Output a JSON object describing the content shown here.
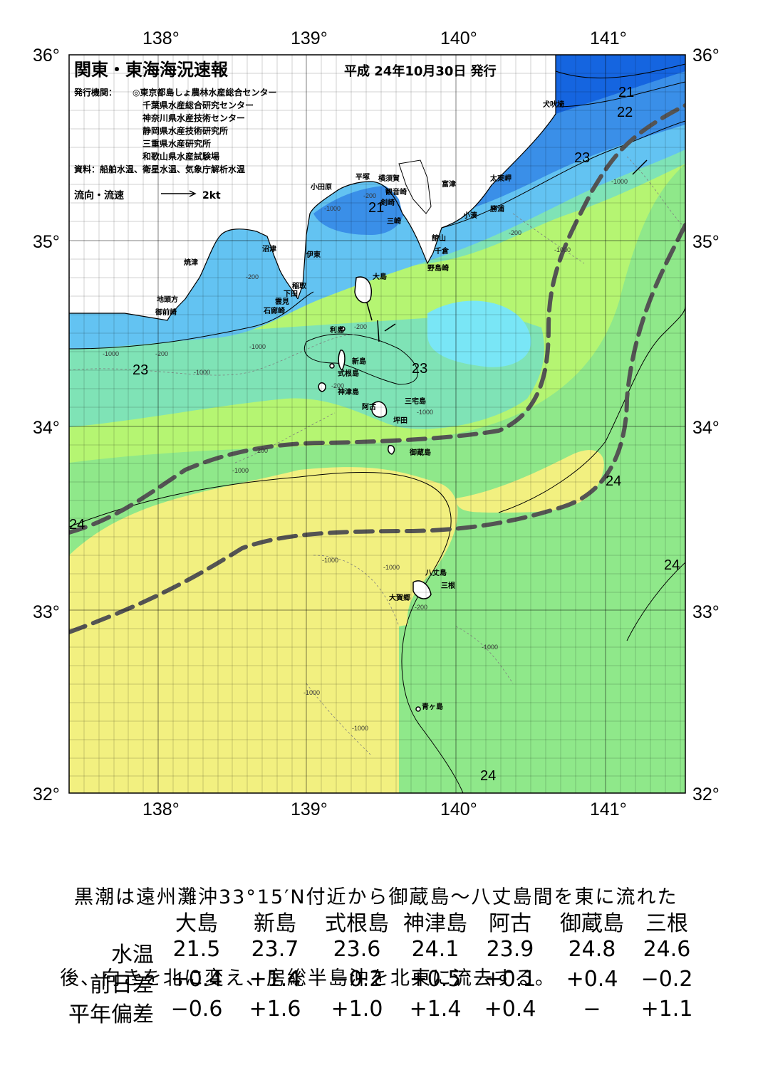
{
  "header": {
    "title": "関東・東海海況速報",
    "date": "平成 24年10月30日 発行",
    "issuer_label": "発行機関：",
    "issuers": [
      "◎東京都島しょ農林水産総合センター",
      "千葉県水産総合研究センター",
      "神奈川県水産技術センター",
      "静岡県水産技術研究所",
      "三重県水産研究所",
      "和歌山県水産試験場"
    ],
    "source": "資料：船舶水温、衛星水温、気象庁解析水温",
    "flow_label": "流向・流速",
    "flow_scale": "2kt"
  },
  "axes": {
    "lon_labels": [
      "138°",
      "139°",
      "140°",
      "141°"
    ],
    "lat_labels": [
      "36°",
      "35°",
      "34°",
      "33°",
      "32°"
    ]
  },
  "places": [
    {
      "name": "犬吠埼"
    },
    {
      "name": "太東岬"
    },
    {
      "name": "勝浦"
    },
    {
      "name": "小湊"
    },
    {
      "name": "富津"
    },
    {
      "name": "館山"
    },
    {
      "name": "千倉"
    },
    {
      "name": "野島崎"
    },
    {
      "name": "横須賀"
    },
    {
      "name": "観音崎"
    },
    {
      "name": "平塚"
    },
    {
      "name": "剣崎"
    },
    {
      "name": "三崎"
    },
    {
      "name": "小田原"
    },
    {
      "name": "沼津"
    },
    {
      "name": "伊東"
    },
    {
      "name": "焼津"
    },
    {
      "name": "稲取"
    },
    {
      "name": "下田"
    },
    {
      "name": "雲見"
    },
    {
      "name": "石廊崎"
    },
    {
      "name": "地頭方"
    },
    {
      "name": "御前崎"
    },
    {
      "name": "大島"
    },
    {
      "name": "利島"
    },
    {
      "name": "新島"
    },
    {
      "name": "式根島"
    },
    {
      "name": "神津島"
    },
    {
      "name": "阿古"
    },
    {
      "name": "三宅島"
    },
    {
      "name": "坪田"
    },
    {
      "name": "御蔵島"
    },
    {
      "name": "八丈島"
    },
    {
      "name": "三根"
    },
    {
      "name": "大賀郷"
    },
    {
      "name": "青ヶ島"
    }
  ],
  "isotherm_labels": [
    "21",
    "22",
    "23",
    "21",
    "23",
    "23",
    "24",
    "24",
    "24",
    "24"
  ],
  "depth_labels": [
    "-1000",
    "-200",
    "-200",
    "-200",
    "-1000",
    "-200",
    "-1000",
    "-200",
    "-1000",
    "-1000",
    "-200",
    "-200",
    "-1000",
    "-1000",
    "-1000",
    "-1000",
    "-1000",
    "-200",
    "-1000",
    "-1000",
    "-1000"
  ],
  "colors": {
    "deep_blue": "#1565e0",
    "blue": "#3a8fe8",
    "light_blue": "#63c3f2",
    "cyan": "#79e6f6",
    "teal_green": "#7fe3b6",
    "green": "#8fe88a",
    "lime": "#b5f572",
    "yellow": "#f2f080",
    "kuroshio_axis": "#545454"
  },
  "summary": {
    "line1": "黒潮は遠州灘沖33°15′N付近から御蔵島～八丈島間を東に流れた",
    "line2": "後、向きを北に変え、房総半島沖を北東に流去する。"
  },
  "table": {
    "columns": [
      "大島",
      "新島",
      "式根島",
      "神津島",
      "阿古",
      "御蔵島",
      "三根"
    ],
    "rows": [
      {
        "label": "水温",
        "values": [
          "21.5",
          "23.7",
          "23.6",
          "24.1",
          "23.9",
          "24.8",
          "24.6"
        ]
      },
      {
        "label": "前日差",
        "values": [
          "+0.4",
          "+1.4",
          "−0.2",
          "+0.5",
          "+0.1",
          "+0.4",
          "−0.2"
        ]
      },
      {
        "label": "平年偏差",
        "values": [
          "−0.6",
          "+1.6",
          "+1.0",
          "+1.4",
          "+0.4",
          "−",
          "+1.1"
        ]
      }
    ]
  }
}
